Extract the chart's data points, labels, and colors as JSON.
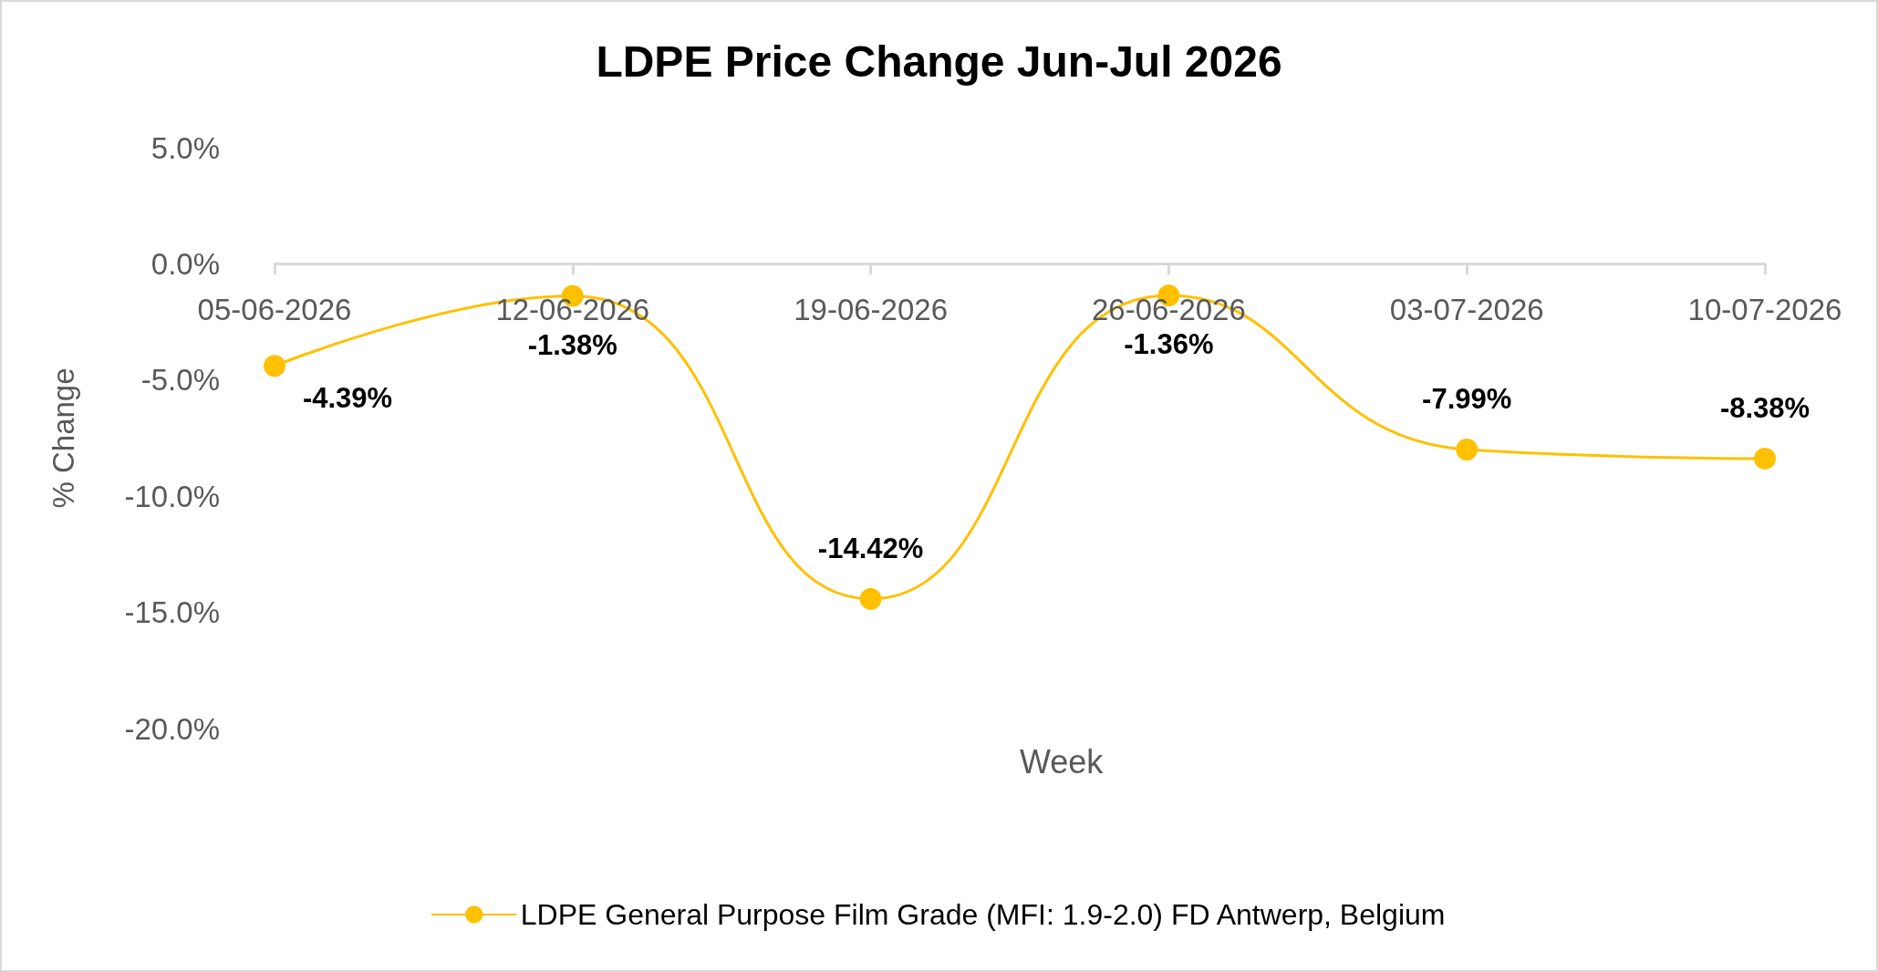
{
  "chart_data": {
    "type": "line",
    "title": "LDPE Price Change Jun-Jul 2026",
    "xlabel": "Week",
    "ylabel": "% Change",
    "categories": [
      "05-06-2026",
      "12-06-2026",
      "19-06-2026",
      "26-06-2026",
      "03-07-2026",
      "10-07-2026"
    ],
    "series": [
      {
        "name": "LDPE General Purpose Film Grade (MFI: 1.9-2.0) FD Antwerp, Belgium",
        "color": "#ffc000",
        "values": [
          -4.39,
          -1.38,
          -14.42,
          -1.36,
          -7.99,
          -8.38
        ],
        "value_labels": [
          "-4.39%",
          "-1.38%",
          "-14.42%",
          "-1.36%",
          "-7.99%",
          "-8.38%"
        ]
      }
    ],
    "ylim": [
      -20,
      5
    ],
    "yticks": [
      {
        "value": -20,
        "label": "-20.0%"
      },
      {
        "value": -15,
        "label": "-15.0%"
      },
      {
        "value": -10,
        "label": "-10.0%"
      },
      {
        "value": -5,
        "label": "-5.0%"
      },
      {
        "value": 0,
        "label": "0.0%"
      },
      {
        "value": 5,
        "label": "5.0%"
      }
    ],
    "grid": false,
    "legend": "bottom",
    "marker": "circle",
    "line_style": "solid"
  }
}
